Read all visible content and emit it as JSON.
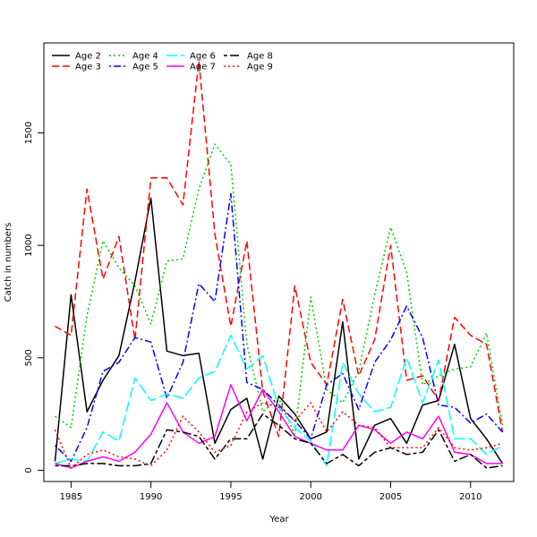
{
  "chart_data": {
    "type": "line",
    "title": "",
    "xlabel": "Year",
    "ylabel": "Catch in numbers",
    "xlim": [
      1983.3,
      2012.7
    ],
    "ylim": [
      -50,
      1900
    ],
    "x_ticks": [
      1985,
      1990,
      1995,
      2000,
      2005,
      2010
    ],
    "y_ticks": [
      0,
      500,
      1000,
      1500
    ],
    "grid": false,
    "legend_position": "top-left",
    "x": [
      1984,
      1985,
      1986,
      1987,
      1988,
      1989,
      1990,
      1991,
      1992,
      1993,
      1994,
      1995,
      1996,
      1997,
      1998,
      1999,
      2000,
      2001,
      2002,
      2003,
      2004,
      2005,
      2006,
      2007,
      2008,
      2009,
      2010,
      2011,
      2012
    ],
    "series": [
      {
        "name": "Age 2",
        "color": "#000000",
        "dash": "solid",
        "values": [
          40,
          780,
          260,
          400,
          510,
          840,
          1210,
          530,
          510,
          520,
          120,
          270,
          320,
          50,
          330,
          250,
          140,
          170,
          660,
          50,
          200,
          230,
          120,
          290,
          310,
          560,
          230,
          140,
          30
        ]
      },
      {
        "name": "Age 3",
        "color": "#ff0000",
        "dash": "dashed",
        "values": [
          640,
          600,
          1250,
          850,
          1040,
          580,
          1300,
          1300,
          1180,
          1820,
          1050,
          640,
          1020,
          350,
          150,
          820,
          480,
          380,
          760,
          420,
          580,
          1000,
          400,
          420,
          310,
          680,
          600,
          560,
          170
        ]
      },
      {
        "name": "Age 4",
        "color": "#00cd00",
        "dash": "dotted",
        "values": [
          240,
          190,
          690,
          1020,
          900,
          820,
          650,
          930,
          940,
          1250,
          1450,
          1360,
          560,
          260,
          320,
          160,
          770,
          360,
          300,
          440,
          780,
          1080,
          880,
          380,
          420,
          450,
          460,
          610,
          200
        ]
      },
      {
        "name": "Age 5",
        "color": "#0000ff",
        "dash": "dotdash",
        "values": [
          110,
          40,
          190,
          440,
          480,
          590,
          570,
          320,
          480,
          830,
          750,
          1230,
          390,
          360,
          290,
          220,
          140,
          380,
          430,
          270,
          480,
          580,
          730,
          590,
          290,
          280,
          210,
          250,
          170
        ]
      },
      {
        "name": "Age 6",
        "color": "#00ffff",
        "dash": "longdash",
        "values": [
          30,
          50,
          40,
          170,
          130,
          410,
          310,
          340,
          320,
          410,
          440,
          600,
          450,
          510,
          280,
          190,
          130,
          20,
          480,
          340,
          260,
          280,
          500,
          300,
          490,
          140,
          140,
          70,
          110
        ]
      },
      {
        "name": "Age 7",
        "color": "#ff00ff",
        "dash": "solid",
        "values": [
          30,
          10,
          40,
          60,
          40,
          80,
          160,
          300,
          170,
          120,
          150,
          380,
          220,
          360,
          260,
          150,
          120,
          90,
          90,
          200,
          180,
          120,
          170,
          140,
          240,
          80,
          70,
          30,
          30
        ]
      },
      {
        "name": "Age 8",
        "color": "#000000",
        "dash": "twodash",
        "values": [
          20,
          20,
          30,
          30,
          20,
          20,
          30,
          180,
          170,
          150,
          50,
          140,
          140,
          250,
          200,
          140,
          120,
          30,
          70,
          20,
          80,
          100,
          70,
          80,
          180,
          40,
          70,
          10,
          20
        ]
      },
      {
        "name": "Age 9",
        "color": "#ff0000",
        "dash": "dotted",
        "values": [
          180,
          10,
          70,
          90,
          60,
          50,
          20,
          90,
          240,
          170,
          80,
          110,
          260,
          300,
          280,
          220,
          300,
          170,
          260,
          200,
          190,
          100,
          100,
          100,
          190,
          100,
          90,
          100,
          120
        ]
      }
    ]
  }
}
